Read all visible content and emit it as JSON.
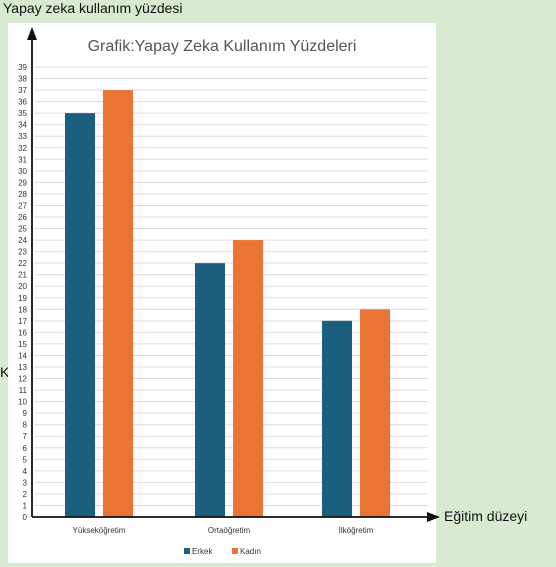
{
  "page": {
    "y_axis_caption": "Yapay zeka kullanım yüzdesi",
    "x_axis_caption": "Eğitim düzeyi",
    "stray_text": "K"
  },
  "colors": {
    "background": "#d8ead0",
    "panel": "#ffffff",
    "grid": "#dcdcdc",
    "axis_arrow": "#111111"
  },
  "chart_data": {
    "type": "bar",
    "title": "Grafik:Yapay Zeka Kullanım Yüzdeleri",
    "xlabel": "Eğitim düzeyi",
    "ylabel": "Yapay zeka kullanım yüzdesi",
    "categories": [
      "Yükseköğretim",
      "Ortaöğretim",
      "İlköğretim"
    ],
    "series": [
      {
        "name": "Erkek",
        "color": "#1a5f80",
        "values": [
          35,
          22,
          17
        ]
      },
      {
        "name": "Kadın",
        "color": "#ea7433",
        "values": [
          37,
          24,
          18
        ]
      }
    ],
    "ylim": [
      0,
      39
    ],
    "yticks": [
      0,
      1,
      2,
      3,
      4,
      5,
      6,
      7,
      8,
      9,
      10,
      11,
      12,
      13,
      14,
      15,
      16,
      17,
      18,
      19,
      20,
      21,
      22,
      23,
      24,
      25,
      26,
      27,
      28,
      29,
      30,
      31,
      32,
      33,
      34,
      35,
      36,
      37,
      38,
      39
    ],
    "grid": true,
    "legend_position": "bottom"
  }
}
